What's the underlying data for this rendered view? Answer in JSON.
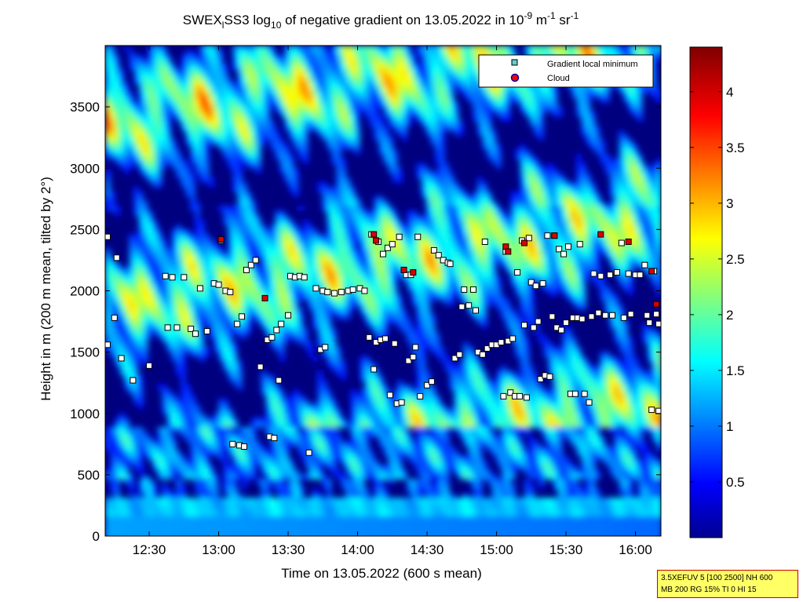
{
  "chart_data": {
    "type": "heatmap",
    "title": {
      "prefix": "SWEX",
      "sub_l": "l",
      "mid": "SS3 log",
      "sub_10": "10",
      "after_log": " of negative gradient on 13.05.2022 in 10",
      "sup_m9": "-9",
      "unit_m": " m",
      "sup_m1a": "-1",
      "unit_sr": " sr",
      "sup_m1b": "-1"
    },
    "xlabel": "Time on 13.05.2022 (600 s mean)",
    "ylabel": "Height in m (200 m mean, tilted by 2°)",
    "x_range": [
      "12:11",
      "16:11"
    ],
    "x_ticks": [
      "12:30",
      "13:00",
      "13:30",
      "14:00",
      "14:30",
      "15:00",
      "15:30",
      "16:00"
    ],
    "y_range": [
      0,
      4000
    ],
    "y_ticks": [
      0,
      500,
      1000,
      1500,
      2000,
      2500,
      3000,
      3500
    ],
    "colorbar": {
      "range": [
        0,
        4.4
      ],
      "ticks": [
        0.5,
        1,
        1.5,
        2,
        2.5,
        3,
        3.5,
        4
      ],
      "colormap": "jet"
    },
    "legend": {
      "placement": "top-right",
      "entries": [
        {
          "label": "Gradient local minimum",
          "marker": "square",
          "color": "#66cccc"
        },
        {
          "label": "Cloud",
          "marker": "circle",
          "color": "#ff0000"
        }
      ]
    },
    "gradient_minima": [
      {
        "t": "12:12",
        "h": 2440
      },
      {
        "t": "12:12",
        "h": 1560
      },
      {
        "t": "12:15",
        "h": 1780
      },
      {
        "t": "12:16",
        "h": 2270
      },
      {
        "t": "12:18",
        "h": 1450
      },
      {
        "t": "12:23",
        "h": 1270
      },
      {
        "t": "12:30",
        "h": 1390
      },
      {
        "t": "12:37",
        "h": 2120
      },
      {
        "t": "12:38",
        "h": 1700
      },
      {
        "t": "12:40",
        "h": 2110
      },
      {
        "t": "12:42",
        "h": 1700
      },
      {
        "t": "12:45",
        "h": 2110
      },
      {
        "t": "12:48",
        "h": 1690
      },
      {
        "t": "12:50",
        "h": 1650
      },
      {
        "t": "12:52",
        "h": 2020
      },
      {
        "t": "12:55",
        "h": 1670
      },
      {
        "t": "12:58",
        "h": 2060
      },
      {
        "t": "13:00",
        "h": 2050
      },
      {
        "t": "13:01",
        "h": 2410
      },
      {
        "t": "13:03",
        "h": 2000
      },
      {
        "t": "13:05",
        "h": 1990
      },
      {
        "t": "13:06",
        "h": 750
      },
      {
        "t": "13:08",
        "h": 1730
      },
      {
        "t": "13:09",
        "h": 740
      },
      {
        "t": "13:10",
        "h": 1790
      },
      {
        "t": "13:11",
        "h": 730
      },
      {
        "t": "13:12",
        "h": 2170
      },
      {
        "t": "13:14",
        "h": 2210
      },
      {
        "t": "13:16",
        "h": 2250
      },
      {
        "t": "13:18",
        "h": 1380
      },
      {
        "t": "13:21",
        "h": 1600
      },
      {
        "t": "13:22",
        "h": 810
      },
      {
        "t": "13:23",
        "h": 1620
      },
      {
        "t": "13:24",
        "h": 800
      },
      {
        "t": "13:25",
        "h": 1680
      },
      {
        "t": "13:26",
        "h": 1270
      },
      {
        "t": "13:27",
        "h": 1730
      },
      {
        "t": "13:30",
        "h": 1800
      },
      {
        "t": "13:31",
        "h": 2120
      },
      {
        "t": "13:33",
        "h": 2110
      },
      {
        "t": "13:35",
        "h": 2120
      },
      {
        "t": "13:37",
        "h": 2110
      },
      {
        "t": "13:39",
        "h": 680
      },
      {
        "t": "13:42",
        "h": 2020
      },
      {
        "t": "13:44",
        "h": 1520
      },
      {
        "t": "13:45",
        "h": 2000
      },
      {
        "t": "13:46",
        "h": 1540
      },
      {
        "t": "13:47",
        "h": 1990
      },
      {
        "t": "13:50",
        "h": 1980
      },
      {
        "t": "13:53",
        "h": 1990
      },
      {
        "t": "13:56",
        "h": 2000
      },
      {
        "t": "13:58",
        "h": 2010
      },
      {
        "t": "14:01",
        "h": 2020
      },
      {
        "t": "14:03",
        "h": 2000
      },
      {
        "t": "14:05",
        "h": 1620
      },
      {
        "t": "14:06",
        "h": 2460
      },
      {
        "t": "14:07",
        "h": 1360
      },
      {
        "t": "14:08",
        "h": 1580
      },
      {
        "t": "14:09",
        "h": 2400
      },
      {
        "t": "14:10",
        "h": 1600
      },
      {
        "t": "14:11",
        "h": 2300
      },
      {
        "t": "14:12",
        "h": 1610
      },
      {
        "t": "14:13",
        "h": 2350
      },
      {
        "t": "14:14",
        "h": 1150
      },
      {
        "t": "14:15",
        "h": 2380
      },
      {
        "t": "14:16",
        "h": 1570
      },
      {
        "t": "14:17",
        "h": 1080
      },
      {
        "t": "14:18",
        "h": 2440
      },
      {
        "t": "14:19",
        "h": 1090
      },
      {
        "t": "14:21",
        "h": 2130
      },
      {
        "t": "14:22",
        "h": 1430
      },
      {
        "t": "14:23",
        "h": 2130
      },
      {
        "t": "14:24",
        "h": 1460
      },
      {
        "t": "14:25",
        "h": 1540
      },
      {
        "t": "14:26",
        "h": 2440
      },
      {
        "t": "14:27",
        "h": 1140
      },
      {
        "t": "14:30",
        "h": 1230
      },
      {
        "t": "14:32",
        "h": 1260
      },
      {
        "t": "14:33",
        "h": 2330
      },
      {
        "t": "14:35",
        "h": 2290
      },
      {
        "t": "14:37",
        "h": 2250
      },
      {
        "t": "14:39",
        "h": 2230
      },
      {
        "t": "14:40",
        "h": 2220
      },
      {
        "t": "14:42",
        "h": 1450
      },
      {
        "t": "14:44",
        "h": 1480
      },
      {
        "t": "14:45",
        "h": 1870
      },
      {
        "t": "14:46",
        "h": 2010
      },
      {
        "t": "14:48",
        "h": 1880
      },
      {
        "t": "14:50",
        "h": 2010
      },
      {
        "t": "14:51",
        "h": 1840
      },
      {
        "t": "14:52",
        "h": 1500
      },
      {
        "t": "14:54",
        "h": 1480
      },
      {
        "t": "14:55",
        "h": 2400
      },
      {
        "t": "14:56",
        "h": 1530
      },
      {
        "t": "14:58",
        "h": 1560
      },
      {
        "t": "15:00",
        "h": 1560
      },
      {
        "t": "15:02",
        "h": 1580
      },
      {
        "t": "15:03",
        "h": 1140
      },
      {
        "t": "15:04",
        "h": 2320
      },
      {
        "t": "15:05",
        "h": 1590
      },
      {
        "t": "15:06",
        "h": 1170
      },
      {
        "t": "15:07",
        "h": 1610
      },
      {
        "t": "15:08",
        "h": 1140
      },
      {
        "t": "15:09",
        "h": 2150
      },
      {
        "t": "15:10",
        "h": 1140
      },
      {
        "t": "15:11",
        "h": 2410
      },
      {
        "t": "15:12",
        "h": 1720
      },
      {
        "t": "15:13",
        "h": 1130
      },
      {
        "t": "15:14",
        "h": 2430
      },
      {
        "t": "15:15",
        "h": 2070
      },
      {
        "t": "15:16",
        "h": 1700
      },
      {
        "t": "15:17",
        "h": 2040
      },
      {
        "t": "15:18",
        "h": 1750
      },
      {
        "t": "15:19",
        "h": 1280
      },
      {
        "t": "15:20",
        "h": 2060
      },
      {
        "t": "15:21",
        "h": 1310
      },
      {
        "t": "15:22",
        "h": 2450
      },
      {
        "t": "15:23",
        "h": 1300
      },
      {
        "t": "15:24",
        "h": 1790
      },
      {
        "t": "15:25",
        "h": 2450
      },
      {
        "t": "15:26",
        "h": 1700
      },
      {
        "t": "15:27",
        "h": 2340
      },
      {
        "t": "15:28",
        "h": 1680
      },
      {
        "t": "15:29",
        "h": 2300
      },
      {
        "t": "15:30",
        "h": 1740
      },
      {
        "t": "15:31",
        "h": 2360
      },
      {
        "t": "15:32",
        "h": 1160
      },
      {
        "t": "15:33",
        "h": 1780
      },
      {
        "t": "15:34",
        "h": 1160
      },
      {
        "t": "15:35",
        "h": 1780
      },
      {
        "t": "15:36",
        "h": 2380
      },
      {
        "t": "15:37",
        "h": 1770
      },
      {
        "t": "15:38",
        "h": 1160
      },
      {
        "t": "15:40",
        "h": 1090
      },
      {
        "t": "15:41",
        "h": 1790
      },
      {
        "t": "15:42",
        "h": 2140
      },
      {
        "t": "15:44",
        "h": 1820
      },
      {
        "t": "15:45",
        "h": 2120
      },
      {
        "t": "15:47",
        "h": 1800
      },
      {
        "t": "15:49",
        "h": 2130
      },
      {
        "t": "15:50",
        "h": 1800
      },
      {
        "t": "15:52",
        "h": 2150
      },
      {
        "t": "15:54",
        "h": 2390
      },
      {
        "t": "15:55",
        "h": 1780
      },
      {
        "t": "15:57",
        "h": 2140
      },
      {
        "t": "15:58",
        "h": 1810
      },
      {
        "t": "16:00",
        "h": 2130
      },
      {
        "t": "16:02",
        "h": 2130
      },
      {
        "t": "16:04",
        "h": 2210
      },
      {
        "t": "16:05",
        "h": 1800
      },
      {
        "t": "16:06",
        "h": 1740
      },
      {
        "t": "16:07",
        "h": 1030
      },
      {
        "t": "16:08",
        "h": 2160
      },
      {
        "t": "16:09",
        "h": 1810
      },
      {
        "t": "16:10",
        "h": 1020
      },
      {
        "t": "16:10",
        "h": 1730
      }
    ],
    "clouds": [
      {
        "t": "13:01",
        "h": 2420
      },
      {
        "t": "13:20",
        "h": 1940
      },
      {
        "t": "14:07",
        "h": 2460
      },
      {
        "t": "14:08",
        "h": 2410
      },
      {
        "t": "14:20",
        "h": 2170
      },
      {
        "t": "14:24",
        "h": 2150
      },
      {
        "t": "15:04",
        "h": 2360
      },
      {
        "t": "15:05",
        "h": 2320
      },
      {
        "t": "15:12",
        "h": 2390
      },
      {
        "t": "15:25",
        "h": 2450
      },
      {
        "t": "15:45",
        "h": 2460
      },
      {
        "t": "15:57",
        "h": 2400
      },
      {
        "t": "16:07",
        "h": 2160
      },
      {
        "t": "16:09",
        "h": 1890
      }
    ]
  },
  "info_box": {
    "line1": "3.5XEFUV 5 [100 2500] NH 600",
    "line2": "MB 200 RG 15% TI 0 HI 15"
  }
}
